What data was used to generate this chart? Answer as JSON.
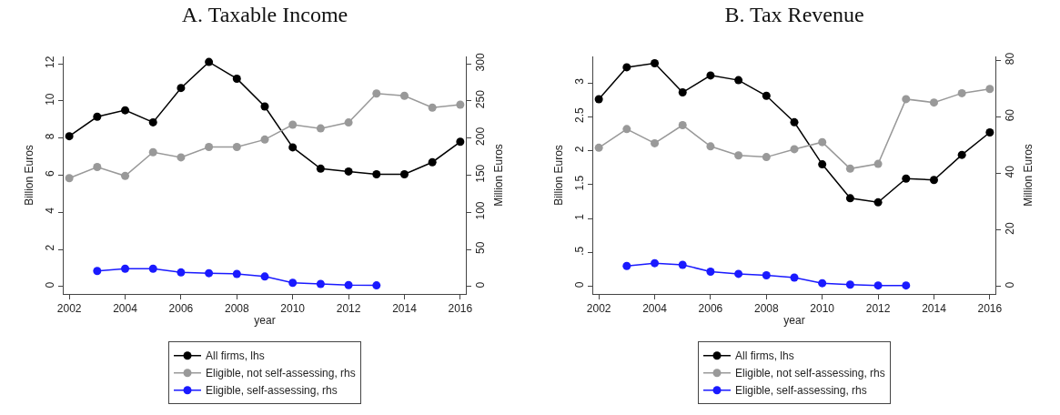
{
  "chart_data": [
    {
      "type": "line",
      "title": "A. Taxable Income",
      "xlabel": "year",
      "ylabel": "Billion Euros",
      "y2label": "Million Euros",
      "x": [
        2002,
        2003,
        2004,
        2005,
        2006,
        2007,
        2008,
        2009,
        2010,
        2011,
        2012,
        2013,
        2014,
        2015,
        2016
      ],
      "xlim": [
        2001.8,
        2016.2
      ],
      "xticks": [
        2002,
        2004,
        2006,
        2008,
        2010,
        2012,
        2014,
        2016
      ],
      "ylim": [
        -0.4,
        12.4
      ],
      "yticks": [
        0,
        2,
        4,
        6,
        8,
        10,
        12
      ],
      "y2lim": [
        -10,
        310
      ],
      "y2ticks": [
        0,
        50,
        100,
        150,
        200,
        250,
        300
      ],
      "grid": false,
      "legend": "bottom",
      "marker": "circle",
      "line_style": "solid",
      "series": [
        {
          "name": "All firms, lhs",
          "color": "#000000",
          "values": [
            8.1,
            9.15,
            9.5,
            8.85,
            10.7,
            12.1,
            11.2,
            9.7,
            7.5,
            6.35,
            6.2,
            6.05,
            6.05,
            6.7,
            7.8
          ]
        },
        {
          "name": "Eligible, not self-assessing, rhs",
          "color": "#999999",
          "axis": "y2",
          "values": [
            146,
            161,
            149,
            181,
            174,
            188,
            188,
            198,
            218,
            213,
            221,
            260,
            257,
            241,
            245
          ]
        },
        {
          "name": "Eligible, self-assessing, rhs",
          "color": "#1a1aff",
          "axis": "y2",
          "values": [
            null,
            21,
            24,
            24,
            19,
            18,
            17,
            13.5,
            5,
            3.5,
            2,
            1.5,
            null,
            null,
            null
          ]
        }
      ]
    },
    {
      "type": "line",
      "title": "B. Tax Revenue",
      "xlabel": "year",
      "ylabel": "Billion Euros",
      "y2label": "Million Euros",
      "x": [
        2002,
        2003,
        2004,
        2005,
        2006,
        2007,
        2008,
        2009,
        2010,
        2011,
        2012,
        2013,
        2014,
        2015,
        2016
      ],
      "xlim": [
        2001.8,
        2016.2
      ],
      "xticks": [
        2002,
        2004,
        2006,
        2008,
        2010,
        2012,
        2014,
        2016
      ],
      "ylim": [
        -0.11,
        3.39
      ],
      "yticks": [
        0,
        {
          "value": 0.5,
          "label": ".5"
        },
        1,
        1.5,
        2,
        2.5,
        3
      ],
      "y2lim": [
        -2.6,
        81.4
      ],
      "y2ticks": [
        0,
        20,
        40,
        60,
        80
      ],
      "grid": false,
      "legend": "bottom",
      "marker": "circle",
      "line_style": "solid",
      "series": [
        {
          "name": "All firms, lhs",
          "color": "#000000",
          "values": [
            2.76,
            3.23,
            3.29,
            2.86,
            3.11,
            3.04,
            2.81,
            2.42,
            1.8,
            1.3,
            1.24,
            1.59,
            1.57,
            1.94,
            2.27
          ]
        },
        {
          "name": "Eligible, not self-assessing, rhs",
          "color": "#999999",
          "axis": "y2",
          "values": [
            49.1,
            55.7,
            50.7,
            57.1,
            49.6,
            46.4,
            45.8,
            48.6,
            51.1,
            41.7,
            43.4,
            66.3,
            65.1,
            68.4,
            69.9
          ]
        },
        {
          "name": "Eligible, self-assessing, rhs",
          "color": "#1a1aff",
          "axis": "y2",
          "values": [
            null,
            7.3,
            8.3,
            7.7,
            5.3,
            4.5,
            4,
            3.2,
            1.2,
            0.7,
            0.4,
            0.4,
            null,
            null,
            null
          ]
        }
      ]
    }
  ]
}
